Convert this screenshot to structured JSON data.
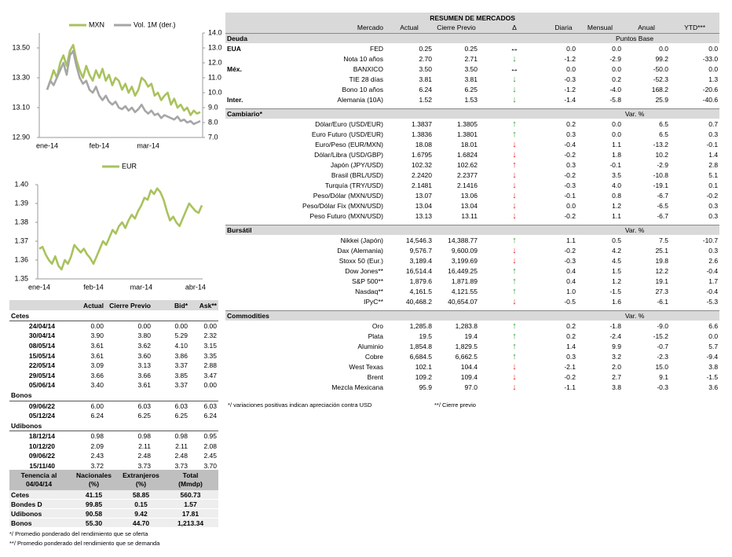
{
  "chart_data": [
    {
      "type": "line",
      "categories": [
        "ene-14",
        null,
        null,
        null,
        null,
        null,
        null,
        null,
        null,
        null,
        null,
        null,
        null,
        null,
        null,
        null,
        "feb-14",
        null,
        null,
        null,
        null,
        null,
        null,
        null,
        null,
        null,
        null,
        null,
        null,
        null,
        null,
        "mar-14",
        null,
        null,
        null,
        null,
        null,
        null,
        null,
        null,
        null,
        null,
        null,
        null,
        null,
        null,
        null,
        null
      ],
      "series": [
        {
          "name": "MXN",
          "color": "#a9c25d",
          "values": [
            13.22,
            13.28,
            13.35,
            13.3,
            13.4,
            13.45,
            13.38,
            13.48,
            13.52,
            13.42,
            13.35,
            13.3,
            13.38,
            13.32,
            13.28,
            13.35,
            13.3,
            13.36,
            13.28,
            13.32,
            13.25,
            13.3,
            13.28,
            13.22,
            13.26,
            13.2,
            13.24,
            13.18,
            13.22,
            13.3,
            13.28,
            13.24,
            13.26,
            13.18,
            13.2,
            13.15,
            13.18,
            13.2,
            13.12,
            13.16,
            13.1,
            13.12,
            13.08,
            13.1,
            13.05,
            13.08,
            13.06,
            13.07
          ]
        },
        {
          "name": "Vol. 1M (der.)",
          "color": "#a6a6a6",
          "axis": "y2",
          "values": [
            10.2,
            10.8,
            10.5,
            11.0,
            11.5,
            12.0,
            11.2,
            12.5,
            12.8,
            11.8,
            11.0,
            10.6,
            10.8,
            10.2,
            10.0,
            10.4,
            9.8,
            9.5,
            9.8,
            9.4,
            9.2,
            9.4,
            9.0,
            8.9,
            9.1,
            8.8,
            9.0,
            8.7,
            8.9,
            9.2,
            8.8,
            8.6,
            8.8,
            8.5,
            8.6,
            8.3,
            8.5,
            8.4,
            8.3,
            8.2,
            8.4,
            8.1,
            8.2,
            8.0,
            8.1,
            7.9,
            8.0,
            8.1
          ]
        }
      ],
      "ylim": [
        12.9,
        13.6
      ],
      "yticks": [
        {
          "value": 12.9,
          "label": "12.90"
        },
        {
          "value": 13.1,
          "label": "13.10"
        },
        {
          "value": 13.3,
          "label": "13.30"
        },
        {
          "value": 13.5,
          "label": "13.50"
        }
      ],
      "y2lim": [
        7,
        14
      ],
      "y2ticks": [
        {
          "value": 7,
          "label": "7.0"
        },
        {
          "value": 8,
          "label": "8.0"
        },
        {
          "value": 9,
          "label": "9.0"
        },
        {
          "value": 10,
          "label": "10.0"
        },
        {
          "value": 11,
          "label": "11.0"
        },
        {
          "value": 12,
          "label": "12.0"
        },
        {
          "value": 13,
          "label": "13.0"
        },
        {
          "value": 14,
          "label": "14.0"
        }
      ],
      "grid": false
    },
    {
      "type": "line",
      "categories": [
        "ene-14",
        null,
        null,
        null,
        null,
        null,
        null,
        null,
        null,
        null,
        null,
        null,
        null,
        null,
        null,
        null,
        null,
        "feb-14",
        null,
        null,
        null,
        null,
        null,
        null,
        null,
        null,
        null,
        null,
        null,
        null,
        null,
        null,
        "mar-14",
        null,
        null,
        null,
        null,
        null,
        null,
        null,
        null,
        null,
        null,
        null,
        null,
        null,
        null,
        null,
        null,
        "abr-14",
        null,
        null
      ],
      "series": [
        {
          "name": "EUR",
          "color": "#a9c25d",
          "values": [
            1.366,
            1.367,
            1.363,
            1.36,
            1.358,
            1.362,
            1.357,
            1.355,
            1.36,
            1.358,
            1.362,
            1.368,
            1.366,
            1.364,
            1.366,
            1.363,
            1.361,
            1.358,
            1.362,
            1.366,
            1.37,
            1.368,
            1.372,
            1.376,
            1.374,
            1.378,
            1.38,
            1.377,
            1.381,
            1.384,
            1.382,
            1.386,
            1.389,
            1.393,
            1.392,
            1.397,
            1.395,
            1.398,
            1.396,
            1.392,
            1.386,
            1.381,
            1.383,
            1.38,
            1.378,
            1.382,
            1.386,
            1.39,
            1.388,
            1.386,
            1.385,
            1.389
          ]
        }
      ],
      "ylim": [
        1.35,
        1.4
      ],
      "yticks": [
        1.35,
        1.36,
        1.37,
        1.38,
        1.39,
        {
          "value": 1.4,
          "label": "1.40"
        }
      ],
      "grid": false
    }
  ],
  "bond_table": {
    "columns": [
      "Actual",
      "Cierre Previo",
      "Bid*",
      "Ask**"
    ],
    "sections": [
      {
        "title": "Cetes",
        "rows": [
          [
            "24/04/14",
            "0.00",
            "0.00",
            "0.00",
            "0.00"
          ],
          [
            "30/04/14",
            "3.90",
            "3.80",
            "5.29",
            "2.32"
          ],
          [
            "08/05/14",
            "3.61",
            "3.62",
            "4.10",
            "3.15"
          ],
          [
            "15/05/14",
            "3.61",
            "3.60",
            "3.86",
            "3.35"
          ],
          [
            "22/05/14",
            "3.09",
            "3.13",
            "3.37",
            "2.88"
          ],
          [
            "29/05/14",
            "3.66",
            "3.66",
            "3.85",
            "3.47"
          ],
          [
            "05/06/14",
            "3.40",
            "3.61",
            "3.37",
            "0.00"
          ]
        ]
      },
      {
        "title": "Bonos",
        "rows": [
          [
            "09/06/22",
            "6.00",
            "6.03",
            "6.03",
            "6.03"
          ],
          [
            "05/12/24",
            "6.24",
            "6.25",
            "6.25",
            "6.24"
          ]
        ]
      },
      {
        "title": "Udibonos",
        "rows": [
          [
            "18/12/14",
            "0.98",
            "0.98",
            "0.98",
            "0.95"
          ],
          [
            "10/12/20",
            "2.09",
            "2.11",
            "2.11",
            "2.08"
          ],
          [
            "09/06/22",
            "2.43",
            "2.48",
            "2.48",
            "2.45"
          ],
          [
            "15/11/40",
            "3.72",
            "3.73",
            "3.73",
            "3.70"
          ]
        ]
      }
    ]
  },
  "holdings_table": {
    "columns": [
      [
        "Tenencia al",
        "04/04/14"
      ],
      [
        "Nacionales",
        "(%)"
      ],
      [
        "Extranjeros",
        "(%)"
      ],
      [
        "Total",
        "(Mmdp)"
      ]
    ],
    "rows": [
      [
        "Cetes",
        "41.15",
        "58.85",
        "560.73"
      ],
      [
        "Bondes D",
        "99.85",
        "0.15",
        "1.57"
      ],
      [
        "Udibonos",
        "90.58",
        "9.42",
        "17.81"
      ],
      [
        "Bonos",
        "55.30",
        "44.70",
        "1,213.34"
      ]
    ]
  },
  "footnotes": [
    "*/ Promedio ponderado del rendimiento que se oferta",
    "**/ Promedio ponderado del rendimiento que se demanda"
  ],
  "market_summary": {
    "title": "RESUMEN DE MERCADOS",
    "columns": [
      "Mercado",
      "Actual",
      "Cierre Previo",
      "Δ",
      "Diaria",
      "Mensual",
      "Anual",
      "YTD***"
    ],
    "sections": [
      {
        "title": "Deuda",
        "unit": "Puntos Base",
        "rows": [
          {
            "group": "EUA",
            "cells": [
              "FED",
              "0.25",
              "0.25",
              "↔",
              "0.0",
              "0.0",
              "0.0",
              "0.0"
            ],
            "color": "#000000"
          },
          {
            "cells": [
              "Nota 10 años",
              "2.70",
              "2.71",
              "↓",
              "-1.2",
              "-2.9",
              "99.2",
              "-33.0"
            ],
            "color": "#2e9a2e"
          },
          {
            "group": "Méx.",
            "cells": [
              "BANXICO",
              "3.50",
              "3.50",
              "↔",
              "0.0",
              "0.0",
              "-50.0",
              "0.0"
            ],
            "color": "#000000"
          },
          {
            "cells": [
              "TIE 28 días",
              "3.81",
              "3.81",
              "↓",
              "-0.3",
              "0.2",
              "-52.3",
              "1.3"
            ],
            "color": "#2e9a2e"
          },
          {
            "cells": [
              "Bono 10 años",
              "6.24",
              "6.25",
              "↓",
              "-1.2",
              "-4.0",
              "168.2",
              "-20.6"
            ],
            "color": "#2e9a2e"
          },
          {
            "group": "Inter.",
            "cells": [
              "Alemania (10A)",
              "1.52",
              "1.53",
              "↓",
              "-1.4",
              "-5.8",
              "25.9",
              "-40.6"
            ],
            "color": "#2e9a2e"
          }
        ]
      },
      {
        "title": "Cambiario*",
        "unit": "Var. %",
        "rows": [
          {
            "cells": [
              "Dólar/Euro (USD/EUR)",
              "1.3837",
              "1.3805",
              "↑",
              "0.2",
              "0.0",
              "6.5",
              "0.7"
            ],
            "color": "#2e9a2e"
          },
          {
            "cells": [
              "Euro Futuro (USD/EUR)",
              "1.3836",
              "1.3801",
              "↑",
              "0.3",
              "0.0",
              "6.5",
              "0.3"
            ],
            "color": "#2e9a2e"
          },
          {
            "cells": [
              "Euro/Peso (EUR/MXN)",
              "18.08",
              "18.01",
              "↓",
              "-0.4",
              "1.1",
              "-13.2",
              "-0.1"
            ],
            "color": "#e02020"
          },
          {
            "cells": [
              "Dólar/Libra (USD/GBP)",
              "1.6795",
              "1.6824",
              "↓",
              "-0.2",
              "1.8",
              "10.2",
              "1.4"
            ],
            "color": "#e02020"
          },
          {
            "cells": [
              "Japón (JPY/USD)",
              "102.32",
              "102.62",
              "↑",
              "0.3",
              "-0.1",
              "-2.9",
              "2.8"
            ],
            "color": "#e02020"
          },
          {
            "cells": [
              "Brasil (BRL/USD)",
              "2.2420",
              "2.2377",
              "↓",
              "-0.2",
              "3.5",
              "-10.8",
              "5.1"
            ],
            "color": "#e02020"
          },
          {
            "cells": [
              "Turquía (TRY/USD)",
              "2.1481",
              "2.1416",
              "↓",
              "-0.3",
              "4.0",
              "-19.1",
              "0.1"
            ],
            "color": "#e02020"
          },
          {
            "cells": [
              "Peso/Dólar (MXN/USD)",
              "13.07",
              "13.06",
              "↓",
              "-0.1",
              "0.8",
              "-6.7",
              "-0.2"
            ],
            "color": "#e02020"
          },
          {
            "cells": [
              "Peso/Dólar Fix (MXN/USD)",
              "13.04",
              "13.04",
              "↓",
              "0.0",
              "1.2",
              "-6.5",
              "0.3"
            ],
            "color": "#e02020"
          },
          {
            "cells": [
              "Peso Futuro (MXN/USD)",
              "13.13",
              "13.11",
              "↓",
              "-0.2",
              "1.1",
              "-6.7",
              "0.3"
            ],
            "color": "#e02020"
          }
        ]
      },
      {
        "title": "Bursátil",
        "unit": "Var. %",
        "rows": [
          {
            "cells": [
              "Nikkei (Japón)",
              "14,546.3",
              "14,388.77",
              "↑",
              "1.1",
              "0.5",
              "7.5",
              "-10.7"
            ],
            "color": "#2e9a2e"
          },
          {
            "cells": [
              "Dax (Alemania)",
              "9,576.7",
              "9,600.09",
              "↓",
              "-0.2",
              "4.2",
              "25.1",
              "0.3"
            ],
            "color": "#e02020"
          },
          {
            "cells": [
              "Stoxx 50 (Eur.)",
              "3,189.4",
              "3,199.69",
              "↓",
              "-0.3",
              "4.5",
              "19.8",
              "2.6"
            ],
            "color": "#e02020"
          },
          {
            "cells": [
              "Dow Jones**",
              "16,514.4",
              "16,449.25",
              "↑",
              "0.4",
              "1.5",
              "12.2",
              "-0.4"
            ],
            "color": "#2e9a2e"
          },
          {
            "cells": [
              "S&P 500**",
              "1,879.6",
              "1,871.89",
              "↑",
              "0.4",
              "1.2",
              "19.1",
              "1.7"
            ],
            "color": "#2e9a2e"
          },
          {
            "cells": [
              "Nasdaq**",
              "4,161.5",
              "4,121.55",
              "↑",
              "1.0",
              "-1.5",
              "27.3",
              "-0.4"
            ],
            "color": "#2e9a2e"
          },
          {
            "cells": [
              "IPyC**",
              "40,468.2",
              "40,654.07",
              "↓",
              "-0.5",
              "1.6",
              "-6.1",
              "-5.3"
            ],
            "color": "#e02020"
          }
        ]
      },
      {
        "title": "Commodities",
        "unit": "Var. %",
        "rows": [
          {
            "cells": [
              "Oro",
              "1,285.8",
              "1,283.8",
              "↑",
              "0.2",
              "-1.8",
              "-9.0",
              "6.6"
            ],
            "color": "#2e9a2e"
          },
          {
            "cells": [
              "Plata",
              "19.5",
              "19.4",
              "↑",
              "0.2",
              "-2.4",
              "-15.2",
              "0.0"
            ],
            "color": "#2e9a2e"
          },
          {
            "cells": [
              "Aluminio",
              "1,854.8",
              "1,829.5",
              "↑",
              "1.4",
              "9.9",
              "-0.7",
              "5.7"
            ],
            "color": "#2e9a2e"
          },
          {
            "cells": [
              "Cobre",
              "6,684.5",
              "6,662.5",
              "↑",
              "0.3",
              "3.2",
              "-2.3",
              "-9.4"
            ],
            "color": "#2e9a2e"
          },
          {
            "cells": [
              "West Texas",
              "102.1",
              "104.4",
              "↓",
              "-2.1",
              "2.0",
              "15.0",
              "3.8"
            ],
            "color": "#e02020"
          },
          {
            "cells": [
              "Brent",
              "109.2",
              "109.4",
              "↓",
              "-0.2",
              "2.7",
              "9.1",
              "-1.5"
            ],
            "color": "#e02020"
          },
          {
            "cells": [
              "Mezcla Mexicana",
              "95.9",
              "97.0",
              "↓",
              "-1.1",
              "3.8",
              "-0.3",
              "3.6"
            ],
            "color": "#e02020"
          }
        ]
      }
    ],
    "footnotes": [
      "*/ variaciones positivas indican apreciación contra USD",
      "**/ Cierre previo"
    ]
  }
}
